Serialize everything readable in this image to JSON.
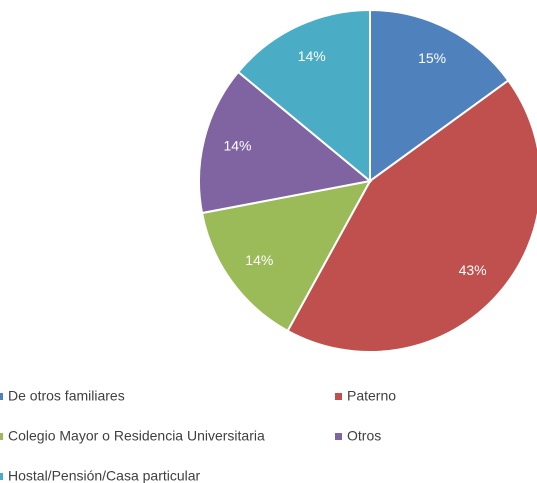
{
  "chart_data": {
    "type": "pie",
    "categories": [
      "De otros familiares",
      "Paterno",
      "Colegio Mayor o Residencia Universitaria",
      "Otros",
      "Hostal/Pensión/Casa particular"
    ],
    "values": [
      15,
      43,
      14,
      14,
      14
    ],
    "value_labels": [
      "15%",
      "43%",
      "14%",
      "14%",
      "14%"
    ],
    "colors": [
      "#4f81bd",
      "#c0504d",
      "#9bbb59",
      "#8064a2",
      "#4bacc6"
    ],
    "legend": "bottom"
  }
}
